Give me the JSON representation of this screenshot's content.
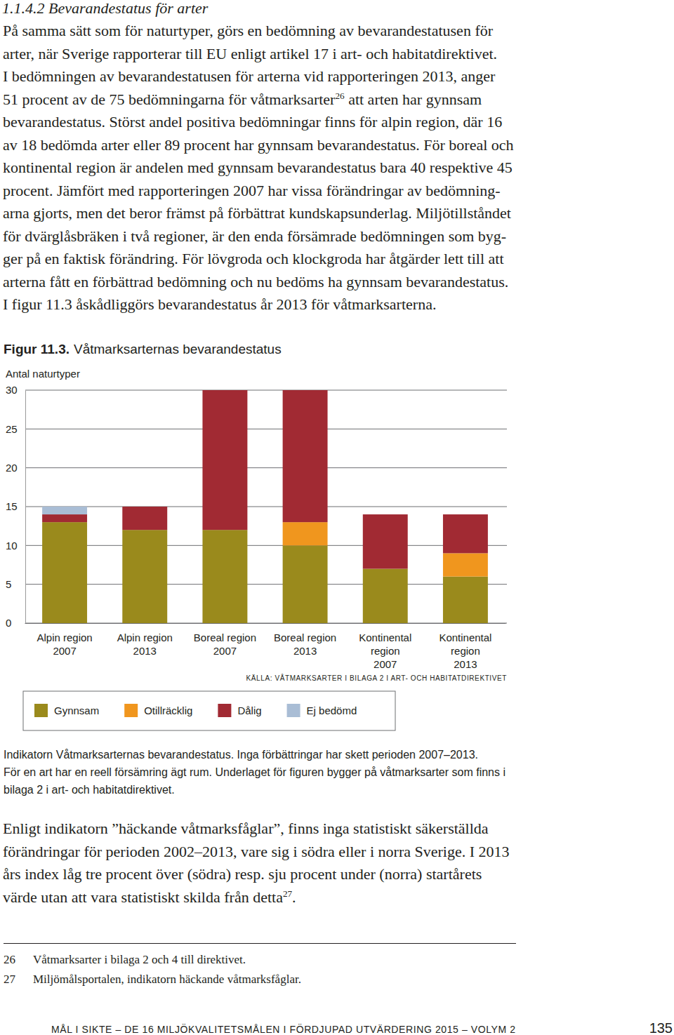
{
  "document": {
    "heading": "1.1.4.2 Bevarandestatus för arter",
    "intro": [
      [
        "På samma sätt som för naturtyper, görs en bedömning av bevarandestatusen för"
      ],
      [
        "arter, när Sverige rapporterar till EU enligt artikel 17 i art- och habitatdirektivet."
      ],
      [
        "I bedömningen av bevarandestatusen för arterna vid rapporteringen 2013, anger"
      ],
      [
        "51 procent av de 75 bedömningarna för våtmarksarter",
        {
          "sup": "26"
        },
        " att arten har gynnsam"
      ],
      [
        "bevarandestatus. Störst andel positiva bedömningar finns för alpin region, där 16"
      ],
      [
        "av 18 bedömda arter eller 89 procent har gynnsam bevarandestatus. För boreal och"
      ],
      [
        "kontinental region är andelen med gynnsam bevarandestatus bara 40 respektive 45"
      ],
      [
        "procent. Jämfört med rapporteringen 2007 har vissa förändringar av bedömning-"
      ],
      [
        "arna gjorts, men det beror främst på förbättrat kundskapsunderlag. Miljötillståndet"
      ],
      [
        "för dvärglåsbräken i två regioner, är den enda försämrade bedömningen som byg-"
      ],
      [
        "ger på en faktisk förändring. För lövgroda och klockgroda har åtgärder lett till att"
      ],
      [
        "arterna fått en förbättrad bedömning och nu bedöms ha gynnsam bevarandestatus."
      ],
      [
        "I figur 11.3 åskådliggörs bevarandestatus år 2013 för våtmarksarterna."
      ]
    ],
    "caption": [
      "Indikatorn Våtmarksarternas bevarandestatus. Inga förbättringar har skett perioden 2007–2013.",
      "För en art har en reell försämring ägt rum. Underlaget för figuren bygger på våtmarksarter som finns i",
      "bilaga 2 i art- och habitatdirektivet."
    ],
    "closing": [
      [
        "Enligt indikatorn ”häckande våtmarksfåglar”, finns inga statistiskt säkerställda"
      ],
      [
        "förändringar för perioden 2002–2013, vare sig i södra eller i norra Sverige. I 2013"
      ],
      [
        "års index låg tre procent över (södra) resp. sju procent under (norra) startårets"
      ],
      [
        "värde utan att vara statistiskt skilda från detta",
        {
          "sup": "27"
        },
        "."
      ]
    ],
    "footnotes": [
      {
        "number": "26",
        "text": "Våtmarksarter i bilaga 2 och 4 till direktivet."
      },
      {
        "number": "27",
        "text": "Miljömålsportalen, indikatorn häckande våtmarksfåglar."
      }
    ],
    "footer": {
      "text": "MÅL I SIKTE – DE 16 MILJÖKVALITETSMÅLEN I FÖRDJUPAD UTVÄRDERING 2015 – VOLYM 2",
      "page": "135"
    }
  },
  "chart_data": {
    "type": "bar",
    "stacked": true,
    "title_label": "Figur 11.3.",
    "title": "Våtmarksarternas bevarandestatus",
    "ylabel": "Antal naturtyper",
    "source": "KÄLLA: VÅTMARKSARTER I BILAGA 2 I ART- OCH HABITATDIREKTIVET",
    "categories": [
      "Alpin region\n2007",
      "Alpin region\n2013",
      "Boreal region\n2007",
      "Boreal region\n2013",
      "Kontinental\nregion\n2007",
      "Kontinental\nregion\n2013"
    ],
    "series": [
      {
        "name": "Gynnsam",
        "color": "#9a8a1c",
        "values": [
          13,
          12,
          12,
          10,
          7,
          6
        ]
      },
      {
        "name": "Otillräcklig",
        "color": "#f0961e",
        "values": [
          0,
          0,
          0,
          3,
          0,
          3
        ]
      },
      {
        "name": "Dålig",
        "color": "#a12a33",
        "values": [
          1,
          3,
          18,
          17,
          7,
          5
        ]
      },
      {
        "name": "Ej bedömd",
        "color": "#a9bdd5",
        "values": [
          1,
          0,
          0,
          0,
          0,
          0
        ]
      }
    ],
    "ylim": [
      0,
      30
    ],
    "yticks": [
      0,
      5,
      10,
      15,
      20,
      25,
      30
    ],
    "grid": true,
    "legend": "bottom"
  }
}
